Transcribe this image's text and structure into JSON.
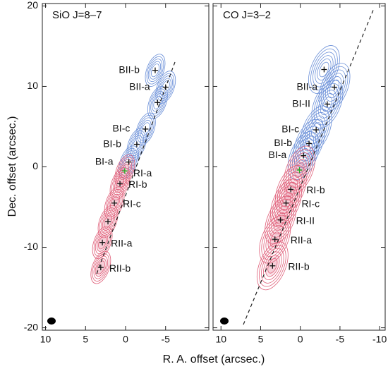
{
  "xlabel": "R. A. offset (arcsec.)",
  "ylabel": "Dec. offset (arcsec.)",
  "chart_data": [
    {
      "type": "contour",
      "title": "SiO J=8–7",
      "xlim": [
        10.4,
        -10.4
      ],
      "xticks": [
        10,
        5,
        0,
        -5
      ],
      "ylim": [
        -20.3,
        20.3
      ],
      "yticks": [
        20,
        10,
        0,
        -10,
        -20
      ],
      "ytick_labels": true,
      "points": {
        "labels": [
          "BII-b",
          "BII-a",
          null,
          "BI-c",
          "BI-b",
          "BI-a",
          null,
          "RI-b",
          "RI-c",
          null,
          "RII-a",
          "RII-b"
        ],
        "x": [
          -3.7,
          -5.0,
          -4.0,
          -2.5,
          -1.4,
          -0.4,
          0.1,
          0.7,
          1.4,
          2.2,
          2.9,
          3.1
        ],
        "y": [
          12.0,
          9.9,
          8.0,
          4.7,
          2.8,
          0.6,
          -0.5,
          -2.1,
          -4.5,
          -6.8,
          -9.4,
          -12.5
        ],
        "colors": [
          "#111",
          "#111",
          "#111",
          "#111",
          "#111",
          "#111",
          "#22aa22",
          "#111",
          "#111",
          "#111",
          "#111",
          "#111"
        ]
      },
      "center_label": "RI-a",
      "blue_color": "#6a8fd8",
      "red_color": "#e0607a"
    },
    {
      "type": "contour",
      "title": "CO J=3–2",
      "xlim": [
        11.0,
        -10.7
      ],
      "xticks": [
        10,
        5,
        0,
        -5,
        -10
      ],
      "ylim": [
        -20.3,
        20.3
      ],
      "yticks": [
        20,
        10,
        0,
        -10,
        -20
      ],
      "ytick_labels": false,
      "points": {
        "labels": [
          null,
          "BII-a",
          "BI-II",
          "BI-c",
          "BI-b",
          "BI-a",
          null,
          "RI-b",
          "RI-c",
          "RI-II",
          "RII-a",
          "RII-b"
        ],
        "x": [
          -3.0,
          -4.3,
          -3.4,
          -2.0,
          -1.1,
          -0.4,
          0.1,
          1.2,
          1.8,
          2.5,
          3.2,
          3.5
        ],
        "y": [
          12.1,
          9.9,
          7.8,
          4.6,
          2.9,
          1.4,
          -0.4,
          -2.8,
          -4.5,
          -6.6,
          -9.0,
          -12.3
        ],
        "colors": [
          "#111",
          "#111",
          "#111",
          "#111",
          "#111",
          "#111",
          "#22aa22",
          "#111",
          "#111",
          "#111",
          "#111",
          "#111"
        ]
      },
      "blue_color": "#6a8fd8",
      "red_color": "#e0607a"
    }
  ]
}
